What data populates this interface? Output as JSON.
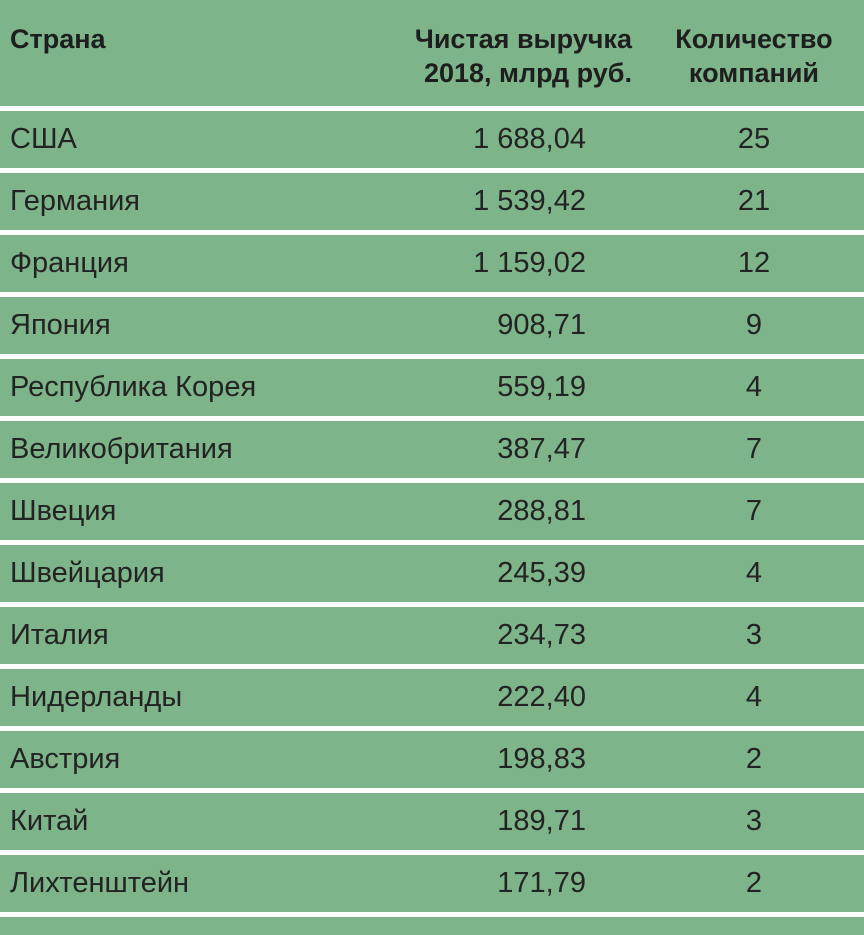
{
  "colors": {
    "cell_green": "#7db489",
    "separator_white": "#ffffff",
    "text_dark": "#222222"
  },
  "table": {
    "columns": [
      {
        "label": "Страна",
        "lines": [
          "Страна"
        ]
      },
      {
        "label": "Чистая выручка 2018, млрд руб.",
        "lines": [
          "Чистая выручка",
          "2018, млрд руб."
        ]
      },
      {
        "label": "Количество компаний",
        "lines": [
          "Количество",
          "компаний"
        ]
      }
    ],
    "rows": [
      {
        "country": "США",
        "revenue": "1 688,04",
        "companies": "25"
      },
      {
        "country": "Германия",
        "revenue": "1 539,42",
        "companies": "21"
      },
      {
        "country": "Франция",
        "revenue": "1 159,02",
        "companies": "12"
      },
      {
        "country": "Япония",
        "revenue": "908,71",
        "companies": "9"
      },
      {
        "country": "Республика Корея",
        "revenue": "559,19",
        "companies": "4"
      },
      {
        "country": "Великобритания",
        "revenue": "387,47",
        "companies": "7"
      },
      {
        "country": "Швеция",
        "revenue": "288,81",
        "companies": "7"
      },
      {
        "country": "Швейцария",
        "revenue": "245,39",
        "companies": "4"
      },
      {
        "country": "Италия",
        "revenue": "234,73",
        "companies": "3"
      },
      {
        "country": "Нидерланды",
        "revenue": "222,40",
        "companies": "4"
      },
      {
        "country": "Австрия",
        "revenue": "198,83",
        "companies": "2"
      },
      {
        "country": "Китай",
        "revenue": "189,71",
        "companies": "3"
      },
      {
        "country": "Лихтенштейн",
        "revenue": "171,79",
        "companies": "2"
      }
    ]
  },
  "chart_data": {
    "type": "table",
    "title": "",
    "columns": [
      "Страна",
      "Чистая выручка 2018, млрд руб.",
      "Количество компаний"
    ],
    "rows": [
      [
        "США",
        1688.04,
        25
      ],
      [
        "Германия",
        1539.42,
        21
      ],
      [
        "Франция",
        1159.02,
        12
      ],
      [
        "Япония",
        908.71,
        9
      ],
      [
        "Республика Корея",
        559.19,
        4
      ],
      [
        "Великобритания",
        387.47,
        7
      ],
      [
        "Швеция",
        288.81,
        7
      ],
      [
        "Швейцария",
        245.39,
        4
      ],
      [
        "Италия",
        234.73,
        3
      ],
      [
        "Нидерланды",
        222.4,
        4
      ],
      [
        "Австрия",
        198.83,
        2
      ],
      [
        "Китай",
        189.71,
        3
      ],
      [
        "Лихтенштейн",
        171.79,
        2
      ]
    ],
    "layout": {
      "header_bold": true,
      "cell_background": "#7db489",
      "row_separator": "#ffffff",
      "alignment": [
        "left",
        "right",
        "center"
      ]
    }
  }
}
